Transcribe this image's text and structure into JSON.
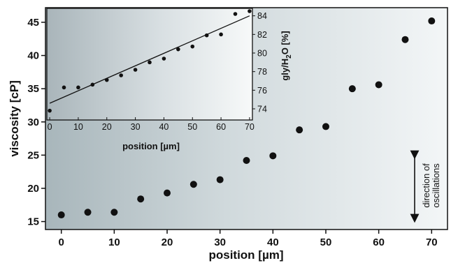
{
  "chart_data": [
    {
      "type": "scatter",
      "role": "main",
      "xlabel": "position [µm]",
      "ylabel": "viscosity [cP]",
      "xlim": [
        -3,
        73
      ],
      "ylim": [
        13.8,
        47.2
      ],
      "xticks": [
        0,
        10,
        20,
        30,
        40,
        50,
        60,
        70
      ],
      "yticks": [
        15,
        20,
        25,
        30,
        35,
        40,
        45
      ],
      "x": [
        0,
        5,
        10,
        15,
        20,
        25,
        30,
        35,
        40,
        45,
        50,
        55,
        60,
        65,
        70
      ],
      "y": [
        16.0,
        16.4,
        16.4,
        18.4,
        19.3,
        20.6,
        21.3,
        24.2,
        24.9,
        28.8,
        29.3,
        35.0,
        35.6,
        42.4,
        45.2
      ],
      "grid": false,
      "annotation": {
        "line1": "direction of",
        "line2": "oscillations"
      }
    },
    {
      "type": "scatter",
      "role": "inset",
      "xlabel": "position [µm]",
      "ylabel_parts": {
        "pre": "gly/H",
        "sub": "2",
        "post": "O [%]"
      },
      "xlim": [
        -1,
        71
      ],
      "ylim": [
        72.8,
        84.8
      ],
      "xticks": [
        0,
        10,
        20,
        30,
        40,
        50,
        60,
        70
      ],
      "yticks": [
        74,
        76,
        78,
        80,
        82,
        84
      ],
      "x": [
        0,
        5,
        10,
        15,
        20,
        25,
        30,
        35,
        40,
        45,
        50,
        55,
        60,
        65,
        70
      ],
      "y": [
        73.8,
        76.3,
        76.3,
        76.6,
        77.1,
        77.6,
        78.2,
        79.0,
        79.4,
        80.4,
        80.7,
        81.9,
        82.0,
        84.2,
        84.5
      ],
      "fit_line": {
        "x": [
          0,
          70
        ],
        "y": [
          74.6,
          84.0
        ]
      },
      "grid": false
    }
  ]
}
